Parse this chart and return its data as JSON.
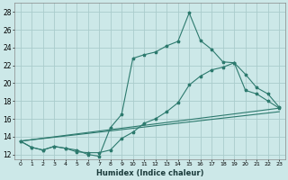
{
  "xlabel": "Humidex (Indice chaleur)",
  "bg_color": "#cce8e8",
  "grid_color": "#aacccc",
  "line_color": "#2d7a6e",
  "xlim": [
    -0.5,
    23.5
  ],
  "ylim": [
    11.5,
    29
  ],
  "xticks": [
    0,
    1,
    2,
    3,
    4,
    5,
    6,
    7,
    8,
    9,
    10,
    11,
    12,
    13,
    14,
    15,
    16,
    17,
    18,
    19,
    20,
    21,
    22,
    23
  ],
  "yticks": [
    12,
    14,
    16,
    18,
    20,
    22,
    24,
    26,
    28
  ],
  "line1_x": [
    0,
    1,
    2,
    3,
    4,
    5,
    6,
    7,
    8,
    9,
    10,
    11,
    12,
    13,
    14,
    15,
    16,
    17,
    18,
    19,
    20,
    21,
    22,
    23
  ],
  "line1_y": [
    13.5,
    12.8,
    12.5,
    12.9,
    12.7,
    12.5,
    12.0,
    11.8,
    15.0,
    16.5,
    22.8,
    23.2,
    23.5,
    24.2,
    24.7,
    27.9,
    24.8,
    23.8,
    22.4,
    22.3,
    19.2,
    18.8,
    18.0,
    17.2
  ],
  "line2_x": [
    0,
    1,
    2,
    3,
    4,
    5,
    6,
    7,
    8,
    9,
    10,
    11,
    12,
    13,
    14,
    15,
    16,
    17,
    18,
    19,
    20,
    21,
    22,
    23
  ],
  "line2_y": [
    13.5,
    12.8,
    12.5,
    12.9,
    12.7,
    12.3,
    12.2,
    12.2,
    12.5,
    13.8,
    14.5,
    15.5,
    16.0,
    16.8,
    17.8,
    19.8,
    20.8,
    21.5,
    21.8,
    22.3,
    21.0,
    19.5,
    18.8,
    17.3
  ],
  "line3_x": [
    0,
    23
  ],
  "line3_y": [
    13.5,
    16.8
  ],
  "line4_x": [
    0,
    23
  ],
  "line4_y": [
    13.5,
    17.2
  ]
}
